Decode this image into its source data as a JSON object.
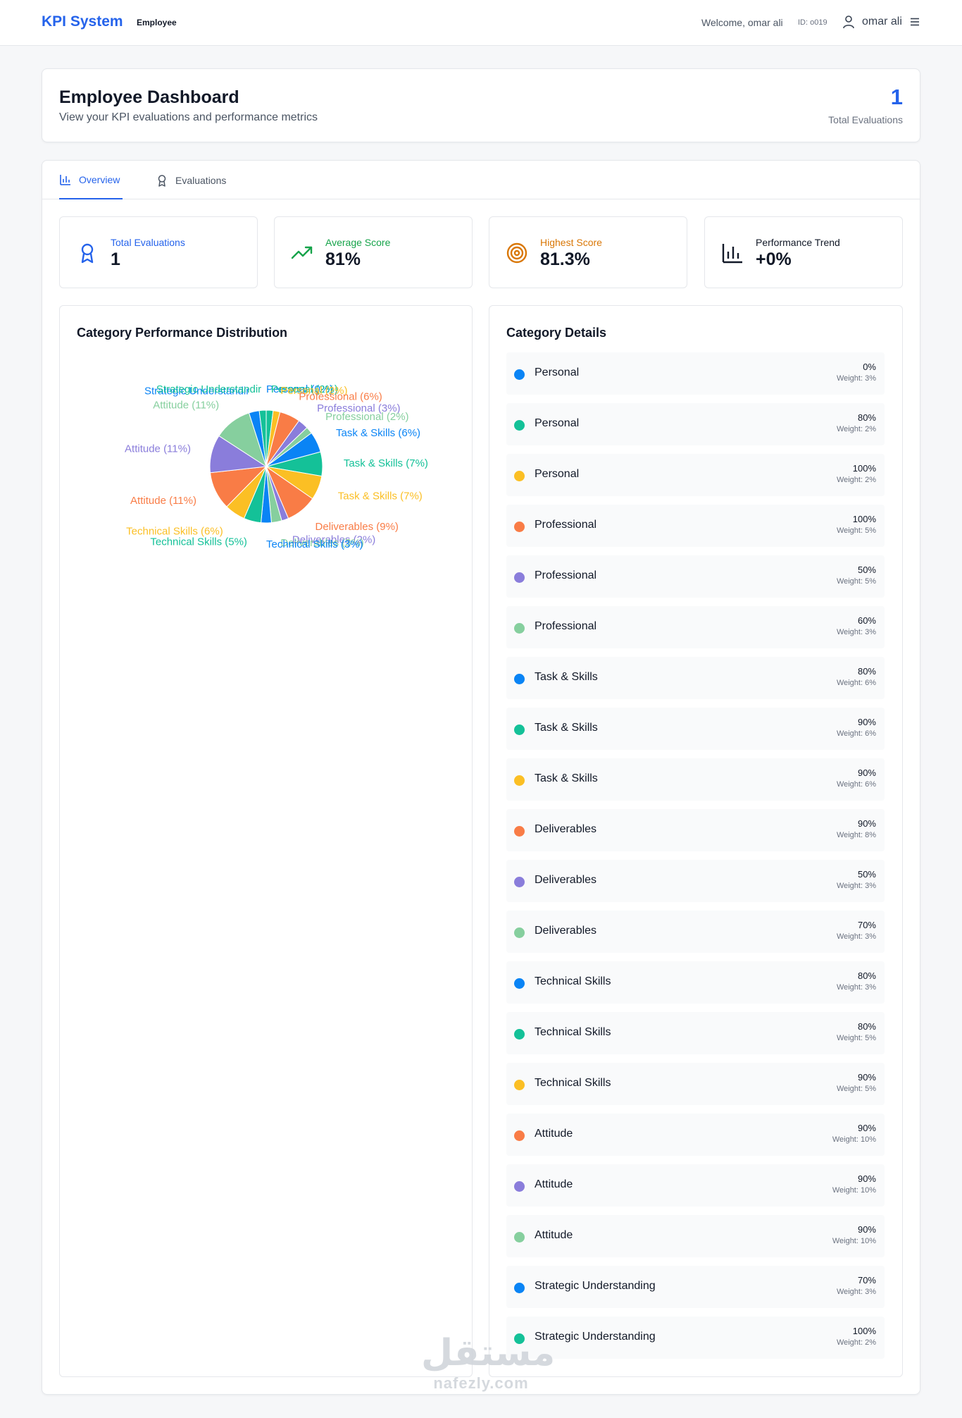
{
  "header": {
    "brand": "KPI System",
    "role": "Employee",
    "welcome": "Welcome, omar ali",
    "user_id": "ID: o019",
    "username": "omar ali",
    "user_icon": "user-icon",
    "menu_icon": "menu-icon"
  },
  "dashboard": {
    "title": "Employee Dashboard",
    "subtitle": "View your KPI evaluations and performance metrics",
    "total_count": "1",
    "total_label": "Total Evaluations"
  },
  "tabs": [
    {
      "label": "Overview",
      "icon": "bar-chart-icon",
      "active": true
    },
    {
      "label": "Evaluations",
      "icon": "award-icon",
      "active": false
    }
  ],
  "stats": [
    {
      "label": "Total Evaluations",
      "value": "1",
      "icon": "award-icon",
      "color": "#2563eb"
    },
    {
      "label": "Average Score",
      "value": "81%",
      "icon": "trending-up-icon",
      "color": "#16a34a"
    },
    {
      "label": "Highest Score",
      "value": "81.3%",
      "icon": "target-icon",
      "color": "#d97706"
    },
    {
      "label": "Performance Trend",
      "value": "+0%",
      "icon": "bar-chart-icon",
      "color": "#111827"
    }
  ],
  "chart_title": "Category Performance Distribution",
  "details_title": "Category Details",
  "palette": [
    "#0a84f5",
    "#14c198",
    "#fbbf24",
    "#f97c46",
    "#8a7ddb",
    "#86cf9e"
  ],
  "chart_data": {
    "type": "pie",
    "title": "Category Performance Distribution",
    "slices": [
      {
        "label": "Personal",
        "value": 0,
        "legend": "Personal (0%)",
        "color": "#0a84f5"
      },
      {
        "label": "Personal",
        "value": 2,
        "legend": "Personal (2%)",
        "color": "#14c198"
      },
      {
        "label": "Personal",
        "value": 2,
        "legend": "Personal (2%)",
        "color": "#fbbf24"
      },
      {
        "label": "Professional",
        "value": 6,
        "legend": "Professional (6%)",
        "color": "#f97c46"
      },
      {
        "label": "Professional",
        "value": 3,
        "legend": "Professional (3%)",
        "color": "#8a7ddb"
      },
      {
        "label": "Professional",
        "value": 2,
        "legend": "Professional (2%)",
        "color": "#86cf9e"
      },
      {
        "label": "Task & Skills",
        "value": 6,
        "legend": "Task & Skills (6%)",
        "color": "#0a84f5"
      },
      {
        "label": "Task & Skills",
        "value": 7,
        "legend": "Task & Skills (7%)",
        "color": "#14c198"
      },
      {
        "label": "Task & Skills",
        "value": 7,
        "legend": "Task & Skills (7%)",
        "color": "#fbbf24"
      },
      {
        "label": "Deliverables",
        "value": 9,
        "legend": "Deliverables (9%)",
        "color": "#f97c46"
      },
      {
        "label": "Deliverables",
        "value": 2,
        "legend": "Deliverables (2%)",
        "color": "#8a7ddb"
      },
      {
        "label": "Deliverables",
        "value": 3,
        "legend": "Deliverables (3%)",
        "color": "#86cf9e"
      },
      {
        "label": "Technical Skills",
        "value": 3,
        "legend": "Technical Skills (3%)",
        "color": "#0a84f5"
      },
      {
        "label": "Technical Skills",
        "value": 5,
        "legend": "Technical Skills (5%)",
        "color": "#14c198"
      },
      {
        "label": "Technical Skills",
        "value": 6,
        "legend": "Technical Skills (6%)",
        "color": "#fbbf24"
      },
      {
        "label": "Attitude",
        "value": 11,
        "legend": "Attitude (11%)",
        "color": "#f97c46"
      },
      {
        "label": "Attitude",
        "value": 11,
        "legend": "Attitude (11%)",
        "color": "#8a7ddb"
      },
      {
        "label": "Attitude",
        "value": 11,
        "legend": "Attitude (11%)",
        "color": "#86cf9e"
      },
      {
        "label": "Strategic Understanding",
        "value": 3,
        "legend": "Strategic Understandir",
        "color": "#0a84f5"
      },
      {
        "label": "Strategic Understanding",
        "value": 2,
        "legend": "Strategic Understandir",
        "color": "#14c198"
      }
    ]
  },
  "details": [
    {
      "name": "Personal",
      "percent": "0%",
      "weight": "Weight: 3%",
      "color": "#0a84f5"
    },
    {
      "name": "Personal",
      "percent": "80%",
      "weight": "Weight: 2%",
      "color": "#14c198"
    },
    {
      "name": "Personal",
      "percent": "100%",
      "weight": "Weight: 2%",
      "color": "#fbbf24"
    },
    {
      "name": "Professional",
      "percent": "100%",
      "weight": "Weight: 5%",
      "color": "#f97c46"
    },
    {
      "name": "Professional",
      "percent": "50%",
      "weight": "Weight: 5%",
      "color": "#8a7ddb"
    },
    {
      "name": "Professional",
      "percent": "60%",
      "weight": "Weight: 3%",
      "color": "#86cf9e"
    },
    {
      "name": "Task & Skills",
      "percent": "80%",
      "weight": "Weight: 6%",
      "color": "#0a84f5"
    },
    {
      "name": "Task & Skills",
      "percent": "90%",
      "weight": "Weight: 6%",
      "color": "#14c198"
    },
    {
      "name": "Task & Skills",
      "percent": "90%",
      "weight": "Weight: 6%",
      "color": "#fbbf24"
    },
    {
      "name": "Deliverables",
      "percent": "90%",
      "weight": "Weight: 8%",
      "color": "#f97c46"
    },
    {
      "name": "Deliverables",
      "percent": "50%",
      "weight": "Weight: 3%",
      "color": "#8a7ddb"
    },
    {
      "name": "Deliverables",
      "percent": "70%",
      "weight": "Weight: 3%",
      "color": "#86cf9e"
    },
    {
      "name": "Technical Skills",
      "percent": "80%",
      "weight": "Weight: 3%",
      "color": "#0a84f5"
    },
    {
      "name": "Technical Skills",
      "percent": "80%",
      "weight": "Weight: 5%",
      "color": "#14c198"
    },
    {
      "name": "Technical Skills",
      "percent": "90%",
      "weight": "Weight: 5%",
      "color": "#fbbf24"
    },
    {
      "name": "Attitude",
      "percent": "90%",
      "weight": "Weight: 10%",
      "color": "#f97c46"
    },
    {
      "name": "Attitude",
      "percent": "90%",
      "weight": "Weight: 10%",
      "color": "#8a7ddb"
    },
    {
      "name": "Attitude",
      "percent": "90%",
      "weight": "Weight: 10%",
      "color": "#86cf9e"
    },
    {
      "name": "Strategic Understanding",
      "percent": "70%",
      "weight": "Weight: 3%",
      "color": "#0a84f5"
    },
    {
      "name": "Strategic Understanding",
      "percent": "100%",
      "weight": "Weight: 2%",
      "color": "#14c198"
    }
  ],
  "watermark": {
    "glyph": "مستقل",
    "text": "nafezly.com"
  }
}
